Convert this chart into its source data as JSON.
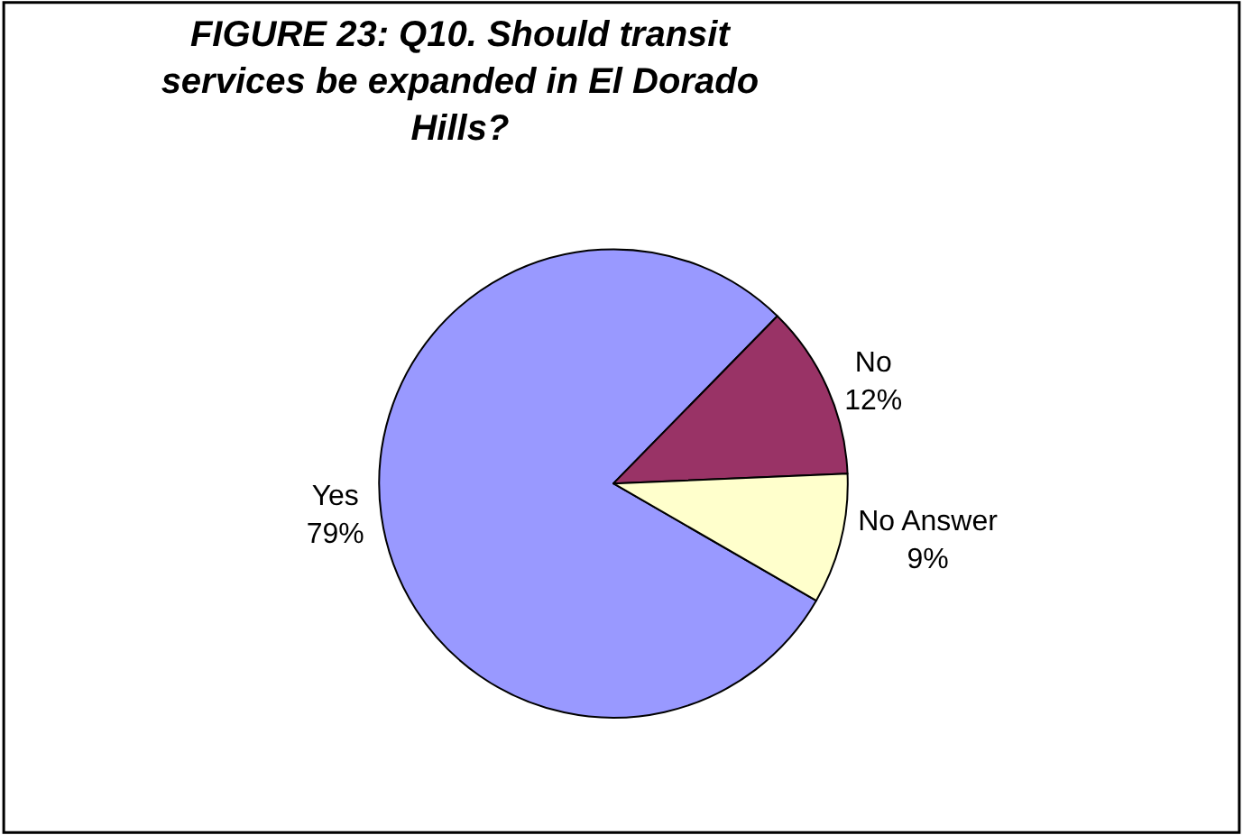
{
  "chart_data": {
    "type": "pie",
    "title": "FIGURE 23: Q10. Should transit services be expanded in El Dorado Hills?",
    "categories": [
      "Yes",
      "No",
      "No Answer"
    ],
    "values": [
      79,
      12,
      9
    ],
    "colors": [
      "#9999ff",
      "#993366",
      "#ffffcc"
    ],
    "value_labels": [
      "79%",
      "12%",
      "9%"
    ],
    "legend": false
  }
}
